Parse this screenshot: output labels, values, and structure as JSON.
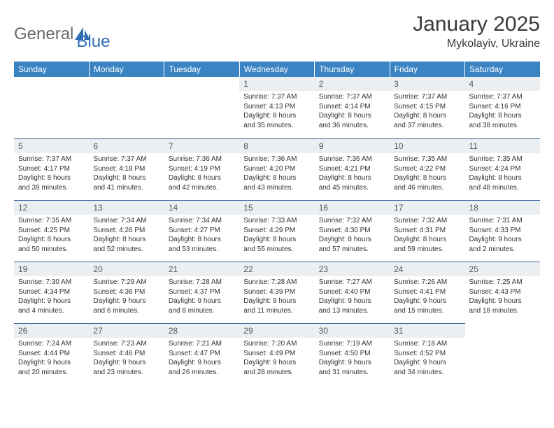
{
  "logo": {
    "textA": "General",
    "textB": "Blue",
    "blue": "#2f6fb3",
    "gray": "#6a6a6a"
  },
  "title": "January 2025",
  "location": "Mykolayiv, Ukraine",
  "header_bg": "#3b84c4",
  "divider": "#31639b",
  "daybg": "#eceff1",
  "weekdays": [
    "Sunday",
    "Monday",
    "Tuesday",
    "Wednesday",
    "Thursday",
    "Friday",
    "Saturday"
  ],
  "weeks": [
    [
      null,
      null,
      null,
      {
        "n": "1",
        "sr": "7:37 AM",
        "ss": "4:13 PM",
        "dl": "8 hours and 35 minutes."
      },
      {
        "n": "2",
        "sr": "7:37 AM",
        "ss": "4:14 PM",
        "dl": "8 hours and 36 minutes."
      },
      {
        "n": "3",
        "sr": "7:37 AM",
        "ss": "4:15 PM",
        "dl": "8 hours and 37 minutes."
      },
      {
        "n": "4",
        "sr": "7:37 AM",
        "ss": "4:16 PM",
        "dl": "8 hours and 38 minutes."
      }
    ],
    [
      {
        "n": "5",
        "sr": "7:37 AM",
        "ss": "4:17 PM",
        "dl": "8 hours and 39 minutes."
      },
      {
        "n": "6",
        "sr": "7:37 AM",
        "ss": "4:18 PM",
        "dl": "8 hours and 41 minutes."
      },
      {
        "n": "7",
        "sr": "7:36 AM",
        "ss": "4:19 PM",
        "dl": "8 hours and 42 minutes."
      },
      {
        "n": "8",
        "sr": "7:36 AM",
        "ss": "4:20 PM",
        "dl": "8 hours and 43 minutes."
      },
      {
        "n": "9",
        "sr": "7:36 AM",
        "ss": "4:21 PM",
        "dl": "8 hours and 45 minutes."
      },
      {
        "n": "10",
        "sr": "7:35 AM",
        "ss": "4:22 PM",
        "dl": "8 hours and 46 minutes."
      },
      {
        "n": "11",
        "sr": "7:35 AM",
        "ss": "4:24 PM",
        "dl": "8 hours and 48 minutes."
      }
    ],
    [
      {
        "n": "12",
        "sr": "7:35 AM",
        "ss": "4:25 PM",
        "dl": "8 hours and 50 minutes."
      },
      {
        "n": "13",
        "sr": "7:34 AM",
        "ss": "4:26 PM",
        "dl": "8 hours and 52 minutes."
      },
      {
        "n": "14",
        "sr": "7:34 AM",
        "ss": "4:27 PM",
        "dl": "8 hours and 53 minutes."
      },
      {
        "n": "15",
        "sr": "7:33 AM",
        "ss": "4:29 PM",
        "dl": "8 hours and 55 minutes."
      },
      {
        "n": "16",
        "sr": "7:32 AM",
        "ss": "4:30 PM",
        "dl": "8 hours and 57 minutes."
      },
      {
        "n": "17",
        "sr": "7:32 AM",
        "ss": "4:31 PM",
        "dl": "8 hours and 59 minutes."
      },
      {
        "n": "18",
        "sr": "7:31 AM",
        "ss": "4:33 PM",
        "dl": "9 hours and 2 minutes."
      }
    ],
    [
      {
        "n": "19",
        "sr": "7:30 AM",
        "ss": "4:34 PM",
        "dl": "9 hours and 4 minutes."
      },
      {
        "n": "20",
        "sr": "7:29 AM",
        "ss": "4:36 PM",
        "dl": "9 hours and 6 minutes."
      },
      {
        "n": "21",
        "sr": "7:28 AM",
        "ss": "4:37 PM",
        "dl": "9 hours and 8 minutes."
      },
      {
        "n": "22",
        "sr": "7:28 AM",
        "ss": "4:39 PM",
        "dl": "9 hours and 11 minutes."
      },
      {
        "n": "23",
        "sr": "7:27 AM",
        "ss": "4:40 PM",
        "dl": "9 hours and 13 minutes."
      },
      {
        "n": "24",
        "sr": "7:26 AM",
        "ss": "4:41 PM",
        "dl": "9 hours and 15 minutes."
      },
      {
        "n": "25",
        "sr": "7:25 AM",
        "ss": "4:43 PM",
        "dl": "9 hours and 18 minutes."
      }
    ],
    [
      {
        "n": "26",
        "sr": "7:24 AM",
        "ss": "4:44 PM",
        "dl": "9 hours and 20 minutes."
      },
      {
        "n": "27",
        "sr": "7:23 AM",
        "ss": "4:46 PM",
        "dl": "9 hours and 23 minutes."
      },
      {
        "n": "28",
        "sr": "7:21 AM",
        "ss": "4:47 PM",
        "dl": "9 hours and 26 minutes."
      },
      {
        "n": "29",
        "sr": "7:20 AM",
        "ss": "4:49 PM",
        "dl": "9 hours and 28 minutes."
      },
      {
        "n": "30",
        "sr": "7:19 AM",
        "ss": "4:50 PM",
        "dl": "9 hours and 31 minutes."
      },
      {
        "n": "31",
        "sr": "7:18 AM",
        "ss": "4:52 PM",
        "dl": "9 hours and 34 minutes."
      },
      null
    ]
  ],
  "labels": {
    "sunrise": "Sunrise:",
    "sunset": "Sunset:",
    "daylight": "Daylight:"
  }
}
